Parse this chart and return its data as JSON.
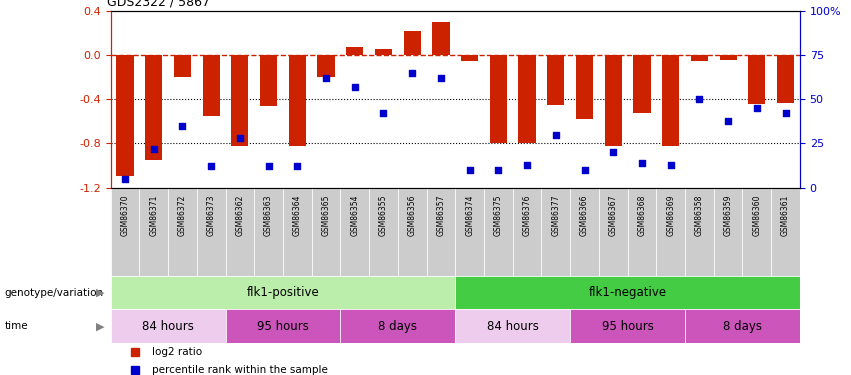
{
  "title": "GDS2322 / 5867",
  "samples": [
    "GSM86370",
    "GSM86371",
    "GSM86372",
    "GSM86373",
    "GSM86362",
    "GSM86363",
    "GSM86364",
    "GSM86365",
    "GSM86354",
    "GSM86355",
    "GSM86356",
    "GSM86357",
    "GSM86374",
    "GSM86375",
    "GSM86376",
    "GSM86377",
    "GSM86366",
    "GSM86367",
    "GSM86368",
    "GSM86369",
    "GSM86358",
    "GSM86359",
    "GSM86360",
    "GSM86361"
  ],
  "log2_ratio": [
    -1.1,
    -0.95,
    -0.2,
    -0.55,
    -0.82,
    -0.46,
    -0.82,
    -0.2,
    0.08,
    0.06,
    0.22,
    0.3,
    -0.05,
    -0.8,
    -0.8,
    -0.45,
    -0.58,
    -0.82,
    -0.52,
    -0.82,
    -0.05,
    -0.04,
    -0.44,
    -0.43
  ],
  "percentile": [
    5,
    22,
    35,
    12,
    28,
    12,
    12,
    62,
    57,
    42,
    65,
    62,
    10,
    10,
    13,
    30,
    10,
    20,
    14,
    13,
    50,
    38,
    45,
    42
  ],
  "bar_color": "#cc2200",
  "dot_color": "#0000cc",
  "ylim_left": [
    -1.2,
    0.4
  ],
  "ylim_right": [
    0,
    100
  ],
  "yticks_left": [
    -1.2,
    -0.8,
    -0.4,
    0.0,
    0.4
  ],
  "yticks_right": [
    0,
    25,
    50,
    75,
    100
  ],
  "ytick_labels_right": [
    "0",
    "25",
    "50",
    "75",
    "100%"
  ],
  "hline_zero_color": "#cc2200",
  "hlines_dotted": [
    -0.4,
    -0.8
  ],
  "genotype_groups": [
    {
      "label": "flk1-positive",
      "start": 0,
      "end": 12,
      "color": "#bbeeaa"
    },
    {
      "label": "flk1-negative",
      "start": 12,
      "end": 24,
      "color": "#44cc44"
    }
  ],
  "time_groups": [
    {
      "label": "84 hours",
      "start": 0,
      "end": 4,
      "color": "#eeccee"
    },
    {
      "label": "95 hours",
      "start": 4,
      "end": 8,
      "color": "#cc44bb"
    },
    {
      "label": "8 days",
      "start": 8,
      "end": 12,
      "color": "#cc44bb"
    },
    {
      "label": "84 hours",
      "start": 12,
      "end": 16,
      "color": "#eeccee"
    },
    {
      "label": "95 hours",
      "start": 16,
      "end": 20,
      "color": "#cc44bb"
    },
    {
      "label": "8 days",
      "start": 20,
      "end": 24,
      "color": "#cc44bb"
    }
  ],
  "genotype_label": "genotype/variation",
  "time_label": "time",
  "xlabel_bg": "#cccccc",
  "legend_items": [
    {
      "label": "log2 ratio",
      "color": "#cc2200"
    },
    {
      "label": "percentile rank within the sample",
      "color": "#0000cc"
    }
  ],
  "n_samples": 24,
  "bar_width": 0.6
}
